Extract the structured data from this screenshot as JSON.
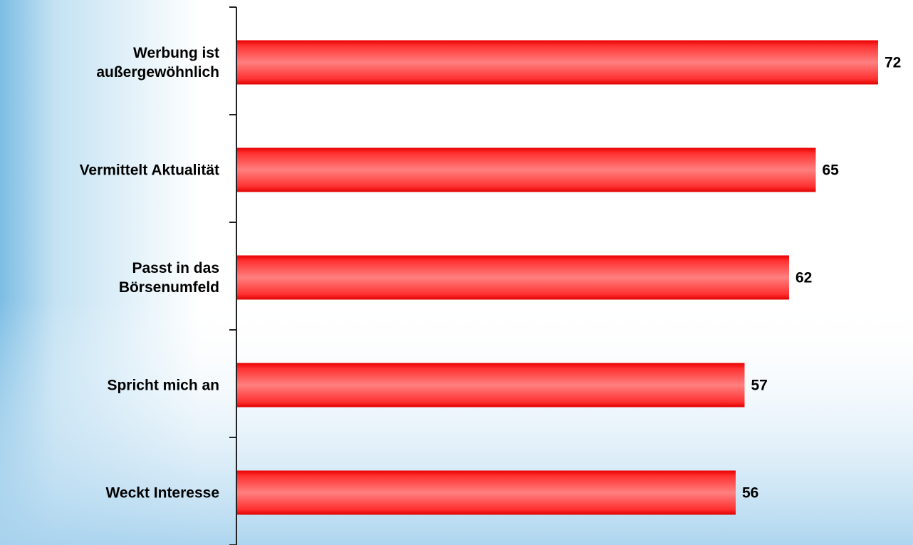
{
  "chart_data": {
    "type": "bar",
    "orientation": "horizontal",
    "categories": [
      "Werbung ist außergewöhnlich",
      "Vermittelt Aktualität",
      "Passt in das Börsenumfeld",
      "Spricht mich an",
      "Weckt Interesse"
    ],
    "category_lines": [
      [
        "Werbung ist",
        "außergewöhnlich"
      ],
      [
        "Vermittelt Aktualität"
      ],
      [
        "Passt in das",
        "Börsenumfeld"
      ],
      [
        "Spricht mich an"
      ],
      [
        "Weckt Interesse"
      ]
    ],
    "values": [
      72,
      65,
      62,
      57,
      56
    ],
    "value_labels": [
      "72",
      "65",
      "62",
      "57",
      "56"
    ],
    "title": "",
    "xlabel": "",
    "ylabel": "",
    "xlim": [
      0,
      80
    ],
    "grid": false,
    "legend": "none",
    "bar_color": "#ff3030",
    "bar_highlight": "#ff8080",
    "bar_dark": "#dd0000"
  },
  "background": {
    "left_color": "#86c2e6",
    "mid_color": "#ffffff",
    "bottom_color": "#a9d3ee"
  }
}
